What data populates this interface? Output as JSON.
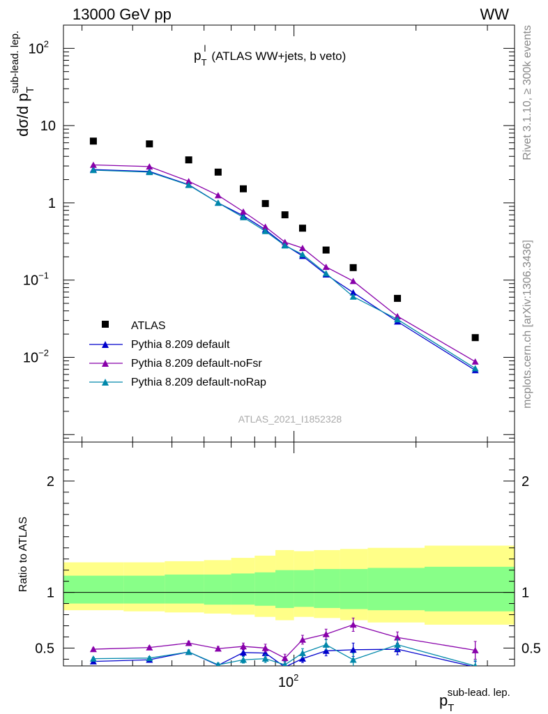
{
  "header": {
    "left": "13000 GeV pp",
    "right": "WW"
  },
  "side": {
    "upper": "Rivet 3.1.10, ≥ 300k events",
    "lower": "mcplots.cern.ch [arXiv:1306.3436]"
  },
  "watermark": "ATLAS_2021_I1852328",
  "colors": {
    "data": "#000000",
    "default": "#0000cc",
    "noFsr": "#8800aa",
    "noRap": "#0088aa",
    "band_yellow": "#ffff88",
    "band_green": "#88ff88"
  },
  "chart_data": [
    {
      "type": "scatter",
      "title": "p_T^l (ATLAS WW+jets, b veto)",
      "title_parts": {
        "main": "p",
        "sup": "l",
        "sub": "T",
        "rest": "(ATLAS WW+jets, b veto)"
      },
      "ylabel": "dσ/d p_T^sub-lead. lep.",
      "ylabel_parts": {
        "main": "dσ/d p",
        "sup": "sub-lead. lep.",
        "sub": "T"
      },
      "yscale": "log",
      "xscale": "log",
      "ylim": [
        0.0008,
        200
      ],
      "xlim": [
        27,
        350
      ],
      "yticks": [
        {
          "v": 0.01,
          "base": "10",
          "exp": "−2"
        },
        {
          "v": 0.1,
          "base": "10",
          "exp": "−1"
        },
        {
          "v": 1,
          "base": "1",
          "exp": ""
        },
        {
          "v": 10,
          "base": "10",
          "exp": ""
        },
        {
          "v": 100,
          "base": "10",
          "exp": "2"
        }
      ],
      "legend_position": "lower-left",
      "x": [
        32,
        44,
        55,
        65,
        75,
        85,
        95,
        105,
        120,
        140,
        180,
        280
      ],
      "series": [
        {
          "name": "ATLAS",
          "marker": "square",
          "color": "#000000",
          "values": [
            6.3,
            5.8,
            3.6,
            2.5,
            1.52,
            0.98,
            0.7,
            0.47,
            0.245,
            0.145,
            0.058,
            0.018
          ]
        },
        {
          "name": "Pythia 8.209 default",
          "marker": "triangle",
          "color": "#0000cc",
          "values": [
            2.7,
            2.55,
            1.72,
            1.0,
            0.68,
            0.45,
            0.285,
            0.205,
            0.118,
            0.069,
            0.029,
            0.0068
          ]
        },
        {
          "name": "Pythia 8.209 default-noFsr",
          "marker": "triangle",
          "color": "#8800aa",
          "values": [
            3.1,
            2.95,
            1.9,
            1.25,
            0.77,
            0.49,
            0.31,
            0.26,
            0.148,
            0.097,
            0.034,
            0.0088
          ]
        },
        {
          "name": "Pythia 8.209 default-noRap",
          "marker": "triangle",
          "color": "#0088aa",
          "values": [
            2.65,
            2.5,
            1.7,
            1.0,
            0.65,
            0.43,
            0.28,
            0.215,
            0.122,
            0.061,
            0.031,
            0.0072
          ]
        }
      ]
    },
    {
      "type": "line",
      "ylabel": "Ratio to ATLAS",
      "xlabel": "p_T^sub-lead. lep.",
      "xlabel_parts": {
        "main": "p",
        "sup": "sub-lead. lep.",
        "sub": "T"
      },
      "xscale": "log",
      "xlim": [
        27,
        350
      ],
      "ylim": [
        0.34,
        2.35
      ],
      "yticks": [
        {
          "v": 0.5,
          "label": "0.5"
        },
        {
          "v": 1,
          "label": "1"
        },
        {
          "v": 2,
          "label": "2"
        }
      ],
      "xticks": [
        {
          "v": 100,
          "base": "10",
          "exp": "2"
        }
      ],
      "reference": 1,
      "bands": {
        "edges": [
          27,
          38,
          48,
          60,
          70,
          80,
          90,
          100,
          112,
          130,
          152,
          210,
          350
        ],
        "yellow": [
          [
            0.84,
            1.27
          ],
          [
            0.83,
            1.27
          ],
          [
            0.82,
            1.28
          ],
          [
            0.81,
            1.29
          ],
          [
            0.8,
            1.31
          ],
          [
            0.78,
            1.33
          ],
          [
            0.75,
            1.38
          ],
          [
            0.78,
            1.37
          ],
          [
            0.77,
            1.38
          ],
          [
            0.75,
            1.39
          ],
          [
            0.73,
            1.4
          ],
          [
            0.71,
            1.42
          ]
        ],
        "green": [
          [
            0.9,
            1.15
          ],
          [
            0.9,
            1.15
          ],
          [
            0.9,
            1.16
          ],
          [
            0.89,
            1.16
          ],
          [
            0.89,
            1.17
          ],
          [
            0.88,
            1.18
          ],
          [
            0.86,
            1.2
          ],
          [
            0.87,
            1.2
          ],
          [
            0.86,
            1.21
          ],
          [
            0.85,
            1.21
          ],
          [
            0.84,
            1.22
          ],
          [
            0.83,
            1.23
          ]
        ]
      },
      "x": [
        32,
        44,
        55,
        65,
        75,
        85,
        95,
        105,
        120,
        140,
        180,
        280
      ],
      "series": [
        {
          "name": "Pythia 8.209 default",
          "color": "#0000cc",
          "values": [
            0.38,
            0.395,
            0.465,
            0.345,
            0.46,
            0.455,
            0.33,
            0.405,
            0.475,
            0.485,
            0.49,
            0.33
          ],
          "errors": [
            0.012,
            0.014,
            0.018,
            0.016,
            0.03,
            0.035,
            0.03,
            0.035,
            0.045,
            0.06,
            0.05,
            0.05
          ]
        },
        {
          "name": "Pythia 8.209 default-noFsr",
          "color": "#8800aa",
          "values": [
            0.49,
            0.505,
            0.545,
            0.495,
            0.515,
            0.5,
            0.41,
            0.575,
            0.625,
            0.71,
            0.595,
            0.48
          ],
          "errors": [
            0.012,
            0.014,
            0.018,
            0.02,
            0.03,
            0.035,
            0.035,
            0.04,
            0.045,
            0.06,
            0.05,
            0.08
          ]
        },
        {
          "name": "Pythia 8.209 default-noRap",
          "color": "#0088aa",
          "values": [
            0.405,
            0.41,
            0.465,
            0.35,
            0.395,
            0.405,
            0.35,
            0.455,
            0.53,
            0.395,
            0.53,
            0.34
          ],
          "errors": [
            0.012,
            0.014,
            0.018,
            0.016,
            0.03,
            0.035,
            0.03,
            0.04,
            0.045,
            0.06,
            0.05,
            0.05
          ]
        }
      ]
    }
  ]
}
